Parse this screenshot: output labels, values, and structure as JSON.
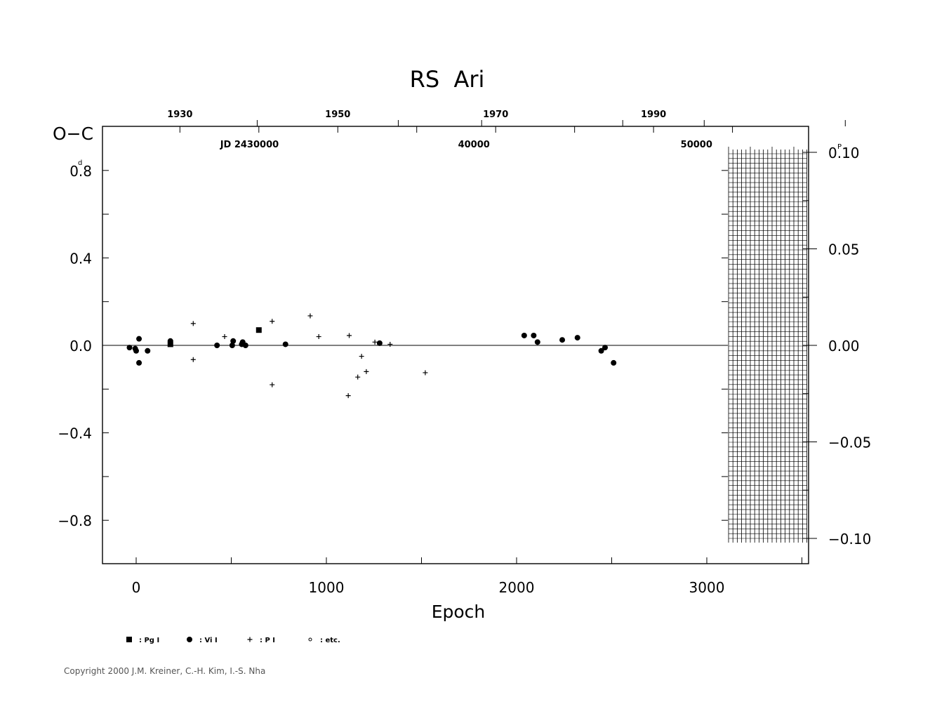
{
  "chart_data": {
    "type": "scatter",
    "title": "RS  Ari",
    "xlabel": "Epoch",
    "ylabel": "O−C",
    "ylabel_unit": "d",
    "right_axis_unit": "P",
    "xlim": [
      -180,
      3540
    ],
    "ylim": [
      -1.0,
      1.0
    ],
    "grid": false,
    "x_ticks": [
      {
        "value": 0,
        "label": "0"
      },
      {
        "value": 1000,
        "label": "1000"
      },
      {
        "value": 2000,
        "label": "2000"
      },
      {
        "value": 3000,
        "label": "3000"
      }
    ],
    "y_ticks": [
      {
        "value": 0.8,
        "label": "0.8"
      },
      {
        "value": 0.4,
        "label": "0.4"
      },
      {
        "value": 0.0,
        "label": "0.0"
      },
      {
        "value": -0.4,
        "label": "−0.4"
      },
      {
        "value": -0.8,
        "label": "−0.8"
      }
    ],
    "right_ticks": [
      {
        "value": 0.1,
        "label": "0.10"
      },
      {
        "value": 0.05,
        "label": "0.05"
      },
      {
        "value": 0.0,
        "label": "0.00"
      },
      {
        "value": -0.05,
        "label": "−0.05"
      },
      {
        "value": -0.1,
        "label": "−0.10"
      }
    ],
    "year_ticks": [
      {
        "epoch": 230,
        "label": "1930"
      },
      {
        "epoch": 1060,
        "label": "1950"
      },
      {
        "epoch": 1890,
        "label": "1970"
      },
      {
        "epoch": 2720,
        "label": "1990"
      }
    ],
    "jd_labels": [
      {
        "epoch": 640,
        "label": "JD  2430000"
      },
      {
        "epoch": 1820,
        "label": "40000"
      },
      {
        "epoch": 2990,
        "label": "50000"
      }
    ],
    "legend": [
      {
        "marker": "square",
        "label": ": Pg  I"
      },
      {
        "marker": "circle",
        "label": ": Vi  I"
      },
      {
        "marker": "plus",
        "label": ": P  I"
      },
      {
        "marker": "small-circle",
        "label": ": etc."
      }
    ],
    "series": [
      {
        "name": "Pg I",
        "marker": "square",
        "points": [
          [
            180,
            0.005
          ],
          [
            645,
            0.07
          ]
        ]
      },
      {
        "name": "Vi I",
        "marker": "circle",
        "points": [
          [
            -35,
            -0.01
          ],
          [
            -5,
            -0.015
          ],
          [
            0,
            -0.025
          ],
          [
            15,
            0.03
          ],
          [
            15,
            -0.08
          ],
          [
            60,
            -0.025
          ],
          [
            180,
            0.02
          ],
          [
            425,
            0.0
          ],
          [
            505,
            0.0
          ],
          [
            510,
            0.02
          ],
          [
            555,
            0.005
          ],
          [
            560,
            0.015
          ],
          [
            575,
            0.0
          ],
          [
            785,
            0.005
          ],
          [
            1280,
            0.01
          ],
          [
            2040,
            0.045
          ],
          [
            2090,
            0.045
          ],
          [
            2110,
            0.015
          ],
          [
            2240,
            0.025
          ],
          [
            2320,
            0.035
          ],
          [
            2445,
            -0.025
          ],
          [
            2465,
            -0.01
          ],
          [
            2510,
            -0.08
          ]
        ]
      },
      {
        "name": "P I",
        "marker": "plus",
        "points": [
          [
            300,
            0.1
          ],
          [
            300,
            -0.065
          ],
          [
            465,
            0.04
          ],
          [
            715,
            0.11
          ],
          [
            715,
            -0.18
          ],
          [
            915,
            0.135
          ],
          [
            960,
            0.04
          ],
          [
            1120,
            0.045
          ],
          [
            1115,
            -0.23
          ],
          [
            1165,
            -0.145
          ],
          [
            1185,
            -0.05
          ],
          [
            1210,
            -0.12
          ],
          [
            1255,
            0.015
          ],
          [
            1335,
            0.005
          ],
          [
            1520,
            -0.125
          ]
        ]
      }
    ]
  },
  "copyright": "Copyright 2000 J.M. Kreiner, C.-H. Kim, I.-S. Nha"
}
